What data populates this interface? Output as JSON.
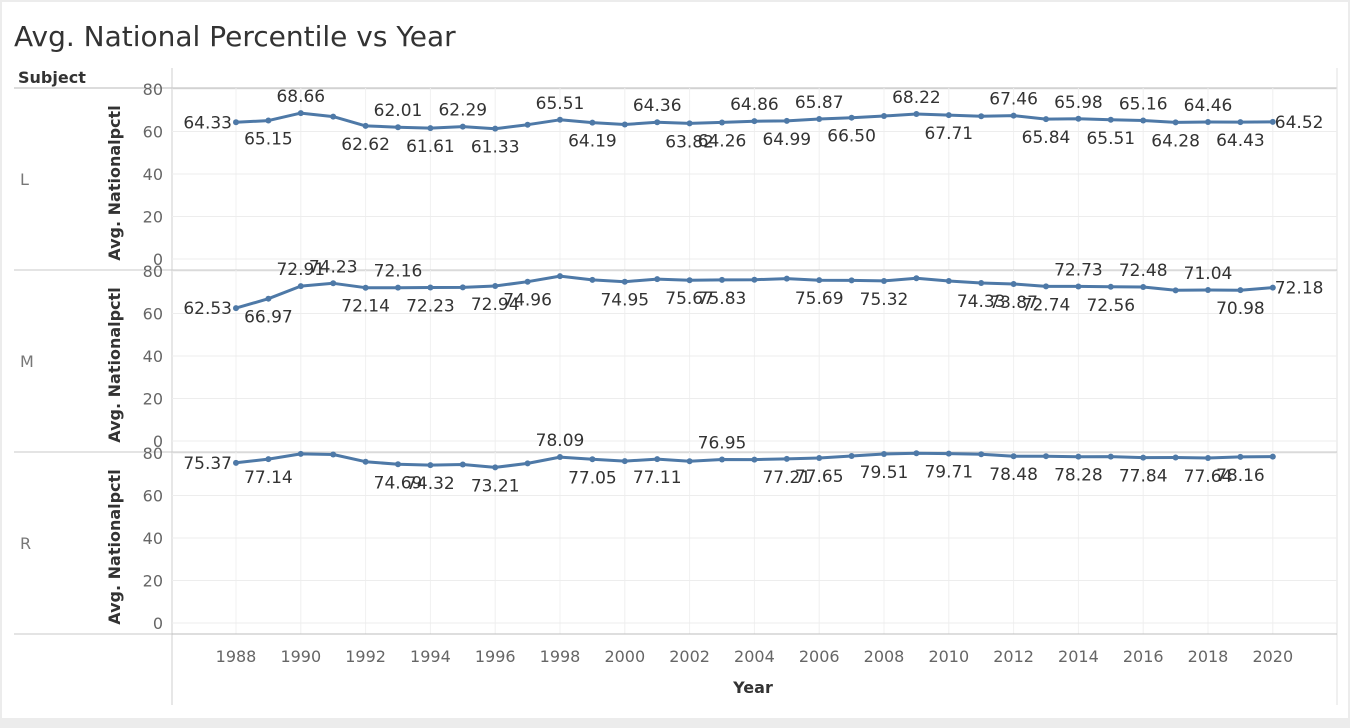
{
  "title": "Avg. National Percentile vs Year",
  "row_header": "Subject",
  "chart_data": {
    "type": "line",
    "xlabel": "Year",
    "ylabel": "Avg. Nationalpctl",
    "xlim": [
      1986,
      2021
    ],
    "ylim": [
      0,
      85
    ],
    "x_ticks": [
      1988,
      1990,
      1992,
      1994,
      1996,
      1998,
      2000,
      2002,
      2004,
      2006,
      2008,
      2010,
      2012,
      2014,
      2016,
      2018,
      2020
    ],
    "y_ticks": [
      0,
      20,
      40,
      60,
      80
    ],
    "line_color": "#4e79a7",
    "grid": true,
    "panels": [
      {
        "subject": "L",
        "points": [
          {
            "x": 1988,
            "y": 64.33,
            "label": "64.33"
          },
          {
            "x": 1989,
            "y": 65.15,
            "label": "65.15"
          },
          {
            "x": 1990,
            "y": 68.66,
            "label": "68.66"
          },
          {
            "x": 1991,
            "y": 67.0
          },
          {
            "x": 1992,
            "y": 62.62,
            "label": "62.62"
          },
          {
            "x": 1993,
            "y": 62.01,
            "label": "62.01"
          },
          {
            "x": 1994,
            "y": 61.61,
            "label": "61.61"
          },
          {
            "x": 1995,
            "y": 62.29,
            "label": "62.29"
          },
          {
            "x": 1996,
            "y": 61.33,
            "label": "61.33"
          },
          {
            "x": 1997,
            "y": 63.2
          },
          {
            "x": 1998,
            "y": 65.51,
            "label": "65.51"
          },
          {
            "x": 1999,
            "y": 64.19,
            "label": "64.19"
          },
          {
            "x": 2000,
            "y": 63.3
          },
          {
            "x": 2001,
            "y": 64.36,
            "label": "64.36"
          },
          {
            "x": 2002,
            "y": 63.82,
            "label": "63.82"
          },
          {
            "x": 2003,
            "y": 64.26,
            "label": "64.26"
          },
          {
            "x": 2004,
            "y": 64.86,
            "label": "64.86"
          },
          {
            "x": 2005,
            "y": 64.99,
            "label": "64.99"
          },
          {
            "x": 2006,
            "y": 65.87,
            "label": "65.87"
          },
          {
            "x": 2007,
            "y": 66.5,
            "label": "66.50"
          },
          {
            "x": 2008,
            "y": 67.3
          },
          {
            "x": 2009,
            "y": 68.22,
            "label": "68.22"
          },
          {
            "x": 2010,
            "y": 67.71,
            "label": "67.71"
          },
          {
            "x": 2011,
            "y": 67.2
          },
          {
            "x": 2012,
            "y": 67.46,
            "label": "67.46"
          },
          {
            "x": 2013,
            "y": 65.84,
            "label": "65.84"
          },
          {
            "x": 2014,
            "y": 65.98,
            "label": "65.98"
          },
          {
            "x": 2015,
            "y": 65.51,
            "label": "65.51"
          },
          {
            "x": 2016,
            "y": 65.16,
            "label": "65.16"
          },
          {
            "x": 2017,
            "y": 64.28,
            "label": "64.28"
          },
          {
            "x": 2018,
            "y": 64.46,
            "label": "64.46"
          },
          {
            "x": 2019,
            "y": 64.43,
            "label": "64.43"
          },
          {
            "x": 2020,
            "y": 64.52,
            "label": "64.52"
          }
        ]
      },
      {
        "subject": "M",
        "points": [
          {
            "x": 1988,
            "y": 62.53,
            "label": "62.53"
          },
          {
            "x": 1989,
            "y": 66.97,
            "label": "66.97"
          },
          {
            "x": 1990,
            "y": 72.91,
            "label": "72.91"
          },
          {
            "x": 1991,
            "y": 74.23,
            "label": "74.23"
          },
          {
            "x": 1992,
            "y": 72.14,
            "label": "72.14"
          },
          {
            "x": 1993,
            "y": 72.16,
            "label": "72.16"
          },
          {
            "x": 1994,
            "y": 72.23,
            "label": "72.23"
          },
          {
            "x": 1995,
            "y": 72.3
          },
          {
            "x": 1996,
            "y": 72.94,
            "label": "72.94"
          },
          {
            "x": 1997,
            "y": 74.96,
            "label": "74.96"
          },
          {
            "x": 1998,
            "y": 77.6
          },
          {
            "x": 1999,
            "y": 75.8
          },
          {
            "x": 2000,
            "y": 74.95,
            "label": "74.95"
          },
          {
            "x": 2001,
            "y": 76.2
          },
          {
            "x": 2002,
            "y": 75.67,
            "label": "75.67"
          },
          {
            "x": 2003,
            "y": 75.83,
            "label": "75.83"
          },
          {
            "x": 2004,
            "y": 75.9
          },
          {
            "x": 2005,
            "y": 76.4
          },
          {
            "x": 2006,
            "y": 75.69,
            "label": "75.69"
          },
          {
            "x": 2007,
            "y": 75.6
          },
          {
            "x": 2008,
            "y": 75.32,
            "label": "75.32"
          },
          {
            "x": 2009,
            "y": 76.6
          },
          {
            "x": 2010,
            "y": 75.3
          },
          {
            "x": 2011,
            "y": 74.33,
            "label": "74.33"
          },
          {
            "x": 2012,
            "y": 73.87,
            "label": "73.87"
          },
          {
            "x": 2013,
            "y": 72.74,
            "label": "72.74"
          },
          {
            "x": 2014,
            "y": 72.73,
            "label": "72.73"
          },
          {
            "x": 2015,
            "y": 72.56,
            "label": "72.56"
          },
          {
            "x": 2016,
            "y": 72.48,
            "label": "72.48"
          },
          {
            "x": 2017,
            "y": 70.9
          },
          {
            "x": 2018,
            "y": 71.04,
            "label": "71.04"
          },
          {
            "x": 2019,
            "y": 70.98,
            "label": "70.98"
          },
          {
            "x": 2020,
            "y": 72.18,
            "label": "72.18"
          }
        ]
      },
      {
        "subject": "R",
        "points": [
          {
            "x": 1988,
            "y": 75.37,
            "label": "75.37"
          },
          {
            "x": 1989,
            "y": 77.14,
            "label": "77.14"
          },
          {
            "x": 1990,
            "y": 79.6
          },
          {
            "x": 1991,
            "y": 79.3
          },
          {
            "x": 1992,
            "y": 75.9
          },
          {
            "x": 1993,
            "y": 74.69,
            "label": "74.69"
          },
          {
            "x": 1994,
            "y": 74.32,
            "label": "74.32"
          },
          {
            "x": 1995,
            "y": 74.6
          },
          {
            "x": 1996,
            "y": 73.21,
            "label": "73.21"
          },
          {
            "x": 1997,
            "y": 75.1
          },
          {
            "x": 1998,
            "y": 78.09,
            "label": "78.09"
          },
          {
            "x": 1999,
            "y": 77.05,
            "label": "77.05"
          },
          {
            "x": 2000,
            "y": 76.2
          },
          {
            "x": 2001,
            "y": 77.11,
            "label": "77.11"
          },
          {
            "x": 2002,
            "y": 76.1
          },
          {
            "x": 2003,
            "y": 76.95,
            "label": "76.95"
          },
          {
            "x": 2004,
            "y": 76.9
          },
          {
            "x": 2005,
            "y": 77.21,
            "label": "77.21"
          },
          {
            "x": 2006,
            "y": 77.65,
            "label": "77.65"
          },
          {
            "x": 2007,
            "y": 78.6
          },
          {
            "x": 2008,
            "y": 79.51,
            "label": "79.51"
          },
          {
            "x": 2009,
            "y": 79.9
          },
          {
            "x": 2010,
            "y": 79.71,
            "label": "79.71"
          },
          {
            "x": 2011,
            "y": 79.4
          },
          {
            "x": 2012,
            "y": 78.48,
            "label": "78.48"
          },
          {
            "x": 2013,
            "y": 78.5
          },
          {
            "x": 2014,
            "y": 78.28,
            "label": "78.28"
          },
          {
            "x": 2015,
            "y": 78.3
          },
          {
            "x": 2016,
            "y": 77.84,
            "label": "77.84"
          },
          {
            "x": 2017,
            "y": 77.9
          },
          {
            "x": 2018,
            "y": 77.64,
            "label": "77.64"
          },
          {
            "x": 2019,
            "y": 78.16,
            "label": "78.16"
          },
          {
            "x": 2020,
            "y": 78.3
          }
        ]
      }
    ]
  }
}
